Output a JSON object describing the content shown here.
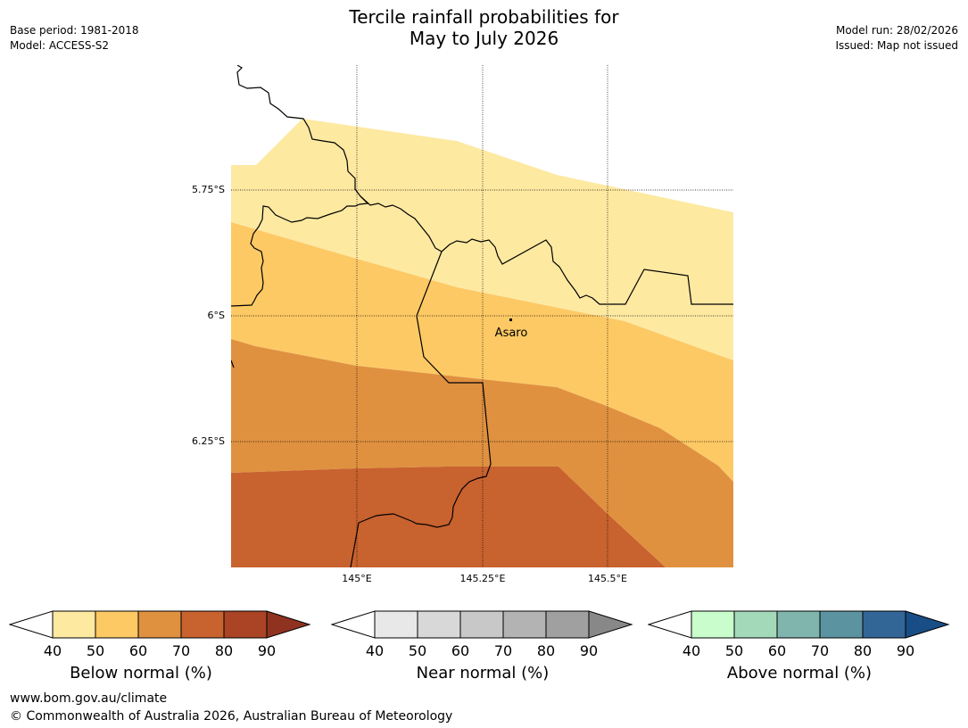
{
  "title_line1": "Tercile rainfall probabilities for",
  "title_line2": "May to July 2026",
  "meta_left": {
    "base_period": "Base period: 1981-2018",
    "model": "Model: ACCESS-S2"
  },
  "meta_right": {
    "model_run": "Model run: 28/02/2026",
    "issued": "Issued: Map not issued"
  },
  "map": {
    "lat_labels": [
      "5.75°S",
      "6°S",
      "6.25°S"
    ],
    "lon_labels": [
      "145°E",
      "145.25°E",
      "145.5°E"
    ],
    "place": "Asaro",
    "colors": {
      "b40": "#fee9a1",
      "b50": "#fdc965",
      "b60": "#df9140",
      "b70": "#c8622e"
    }
  },
  "legends": [
    {
      "title": "Below normal (%)",
      "ticks": [
        "40",
        "50",
        "60",
        "70",
        "80",
        "90"
      ],
      "colors": [
        "#fee9a1",
        "#fdc965",
        "#df9140",
        "#c8622e",
        "#ab4325",
        "#8f3220"
      ]
    },
    {
      "title": "Near normal (%)",
      "ticks": [
        "40",
        "50",
        "60",
        "70",
        "80",
        "90"
      ],
      "colors": [
        "#e8e8e8",
        "#d8d8d8",
        "#c8c8c8",
        "#b3b3b3",
        "#a0a0a0",
        "#888888"
      ]
    },
    {
      "title": "Above normal (%)",
      "ticks": [
        "40",
        "50",
        "60",
        "70",
        "80",
        "90"
      ],
      "colors": [
        "#c9fdcb",
        "#a3d9b9",
        "#80b5ae",
        "#5b93a1",
        "#326697",
        "#194d86"
      ]
    }
  ],
  "footer": {
    "url": "www.bom.gov.au/climate",
    "copyright": "© Commonwealth of Australia 2026, Australian Bureau of Meteorology"
  }
}
